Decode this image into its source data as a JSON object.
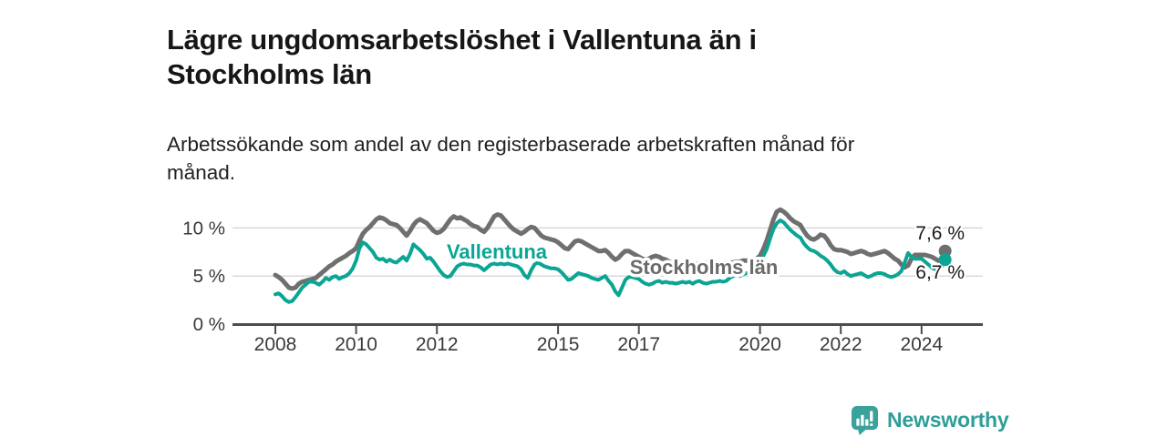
{
  "chart_data": {
    "type": "line",
    "title": "Lägre ungdomsarbetslöshet i Vallentuna än i Stockholms län",
    "subtitle": "Arbetssökande som andel av den registerbaserade arbetskraften månad för månad.",
    "frequency": "monthly",
    "x_start": "2008-01",
    "x_end": "2024-08",
    "unit": "%",
    "ylim": [
      0,
      12.5
    ],
    "grid": "horizontal",
    "legend_position": "inline-labels",
    "yticks": [
      {
        "value": 0,
        "label": "0 %"
      },
      {
        "value": 5,
        "label": "5 %"
      },
      {
        "value": 10,
        "label": "10 %"
      }
    ],
    "xticks": [
      {
        "year": 2008,
        "label": "2008"
      },
      {
        "year": 2010,
        "label": "2010"
      },
      {
        "year": 2012,
        "label": "2012"
      },
      {
        "year": 2015,
        "label": "2015"
      },
      {
        "year": 2017,
        "label": "2017"
      },
      {
        "year": 2020,
        "label": "2020"
      },
      {
        "year": 2022,
        "label": "2022"
      },
      {
        "year": 2024,
        "label": "2024"
      }
    ],
    "series": [
      {
        "name": "Stockholms län",
        "color": "#6f6f6f",
        "label_color": "#6b6b6b",
        "latest_value": 7.6,
        "end_label": "7,6 %",
        "values": [
          5.1,
          4.9,
          4.6,
          4.2,
          3.8,
          3.7,
          3.8,
          4.2,
          4.4,
          4.5,
          4.6,
          4.7,
          4.8,
          5.1,
          5.4,
          5.7,
          6.0,
          6.2,
          6.5,
          6.7,
          6.9,
          7.1,
          7.4,
          7.6,
          7.9,
          8.7,
          9.4,
          9.8,
          10.1,
          10.5,
          10.9,
          11.1,
          11.0,
          10.8,
          10.5,
          10.4,
          10.3,
          10.0,
          9.6,
          9.2,
          9.7,
          10.3,
          10.7,
          10.9,
          10.7,
          10.5,
          10.1,
          9.7,
          9.5,
          9.6,
          9.9,
          10.4,
          10.9,
          11.2,
          11.0,
          11.1,
          10.9,
          10.7,
          10.4,
          10.2,
          10.1,
          9.8,
          9.6,
          10.0,
          10.6,
          11.2,
          11.4,
          11.3,
          10.9,
          10.5,
          10.1,
          9.8,
          9.6,
          9.4,
          9.6,
          9.9,
          10.1,
          10.0,
          9.6,
          9.2,
          9.0,
          8.9,
          8.8,
          8.7,
          8.5,
          8.2,
          7.9,
          7.8,
          8.2,
          8.6,
          8.7,
          8.6,
          8.4,
          8.2,
          8.0,
          7.8,
          7.6,
          7.6,
          7.7,
          7.4,
          7.0,
          6.7,
          6.9,
          7.3,
          7.6,
          7.6,
          7.4,
          7.2,
          7.0,
          6.8,
          6.7,
          6.8,
          7.0,
          7.1,
          7.0,
          6.8,
          6.7,
          6.5,
          6.4,
          6.4,
          6.4,
          6.3,
          6.3,
          6.4,
          6.4,
          6.3,
          6.3,
          6.4,
          6.4,
          6.3,
          6.3,
          6.3,
          6.3,
          6.3,
          6.4,
          6.4,
          6.4,
          6.5,
          6.5,
          6.6,
          6.6,
          6.6,
          6.7,
          6.8,
          7.1,
          7.8,
          8.7,
          9.8,
          10.9,
          11.7,
          11.9,
          11.7,
          11.4,
          11.0,
          10.7,
          10.5,
          10.3,
          9.7,
          9.2,
          8.9,
          8.8,
          9.0,
          9.3,
          9.2,
          8.8,
          8.2,
          7.8,
          7.7,
          7.7,
          7.6,
          7.5,
          7.3,
          7.4,
          7.5,
          7.6,
          7.5,
          7.3,
          7.2,
          7.3,
          7.4,
          7.5,
          7.6,
          7.4,
          7.1,
          6.8,
          6.6,
          6.2,
          5.9,
          6.1,
          6.8,
          7.2,
          7.2,
          7.2,
          7.2,
          7.1,
          7.0,
          6.8,
          6.6,
          6.6,
          7.6
        ]
      },
      {
        "name": "Vallentuna",
        "color": "#0ba594",
        "label_color": "#0ba594",
        "latest_value": 6.7,
        "end_label": "6,7 %",
        "values": [
          3.1,
          3.2,
          2.9,
          2.5,
          2.3,
          2.4,
          2.8,
          3.3,
          3.8,
          4.1,
          4.4,
          4.4,
          4.3,
          4.1,
          4.4,
          4.8,
          4.6,
          4.9,
          5.0,
          4.7,
          4.9,
          5.0,
          5.3,
          5.8,
          6.6,
          7.9,
          8.5,
          8.3,
          7.9,
          7.5,
          6.9,
          6.7,
          6.8,
          6.5,
          6.7,
          6.5,
          6.4,
          6.7,
          7.0,
          6.6,
          7.3,
          8.3,
          8.0,
          7.7,
          7.3,
          6.8,
          6.9,
          6.5,
          6.0,
          5.5,
          5.1,
          4.9,
          5.0,
          5.5,
          6.0,
          6.2,
          6.3,
          6.2,
          6.2,
          6.1,
          6.1,
          5.9,
          5.6,
          5.9,
          6.2,
          6.3,
          6.2,
          6.3,
          6.2,
          6.3,
          6.2,
          6.1,
          6.0,
          5.7,
          5.1,
          4.8,
          5.6,
          6.2,
          6.4,
          6.2,
          6.0,
          5.9,
          5.8,
          5.8,
          5.7,
          5.4,
          5.0,
          4.6,
          4.7,
          5.0,
          5.3,
          5.2,
          5.1,
          5.0,
          4.8,
          4.7,
          4.6,
          4.8,
          5.0,
          4.5,
          4.1,
          3.4,
          3.0,
          3.8,
          4.6,
          4.9,
          4.9,
          4.8,
          4.7,
          4.4,
          4.2,
          4.1,
          4.2,
          4.4,
          4.5,
          4.3,
          4.4,
          4.3,
          4.3,
          4.2,
          4.3,
          4.4,
          4.3,
          4.4,
          4.2,
          4.4,
          4.5,
          4.3,
          4.2,
          4.3,
          4.4,
          4.4,
          4.5,
          4.4,
          4.5,
          4.8,
          5.0,
          5.1,
          5.0,
          5.2,
          5.3,
          5.2,
          5.3,
          5.5,
          6.2,
          7.1,
          7.8,
          8.9,
          9.9,
          10.5,
          10.8,
          10.6,
          10.2,
          9.8,
          9.5,
          9.2,
          9.0,
          8.4,
          8.0,
          7.7,
          7.6,
          7.4,
          7.1,
          6.9,
          6.6,
          6.2,
          5.7,
          5.4,
          5.3,
          5.5,
          5.2,
          5.0,
          5.1,
          5.2,
          5.3,
          5.1,
          4.9,
          5.0,
          5.2,
          5.3,
          5.3,
          5.2,
          5.0,
          4.9,
          5.0,
          5.2,
          5.5,
          6.4,
          7.4,
          7.0,
          6.8,
          6.8,
          6.8,
          6.5,
          6.2,
          5.9,
          5.7,
          5.6,
          6.0,
          6.7
        ]
      }
    ],
    "colors": {
      "grid": "#d9d9d9",
      "axis": "#4c4c4c",
      "tick_text": "#3a3a3a",
      "end_label_text": "#1a1a1a",
      "background": "#ffffff"
    }
  },
  "branding": {
    "name": "Newsworthy",
    "color": "#2f9e98"
  }
}
